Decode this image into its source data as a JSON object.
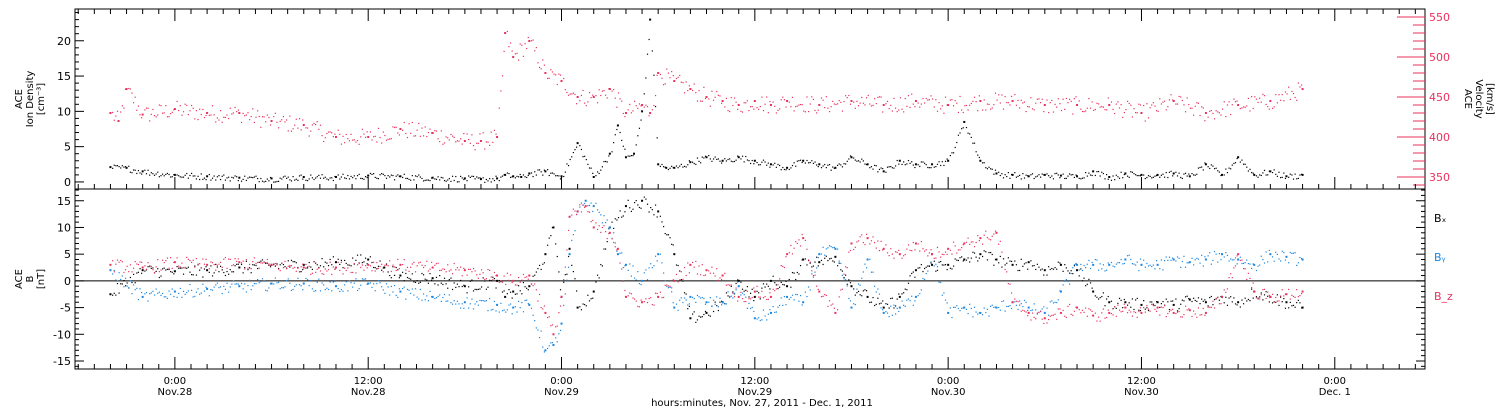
{
  "chart_data": [
    {
      "type": "scatter",
      "panel": "top",
      "ylabel_left": [
        "ACE",
        "Ion Density",
        "[cm⁻³]"
      ],
      "ylabel_right": [
        "ACE",
        "Velocity",
        "[km/s]"
      ],
      "ylim_left": [
        -1,
        24.5
      ],
      "ylim_right": [
        335,
        560
      ],
      "yticks_left": [
        0,
        5,
        10,
        15,
        20
      ],
      "yticks_right": [
        350,
        400,
        450,
        500,
        550
      ],
      "colors": {
        "density": "#000000",
        "velocity": "#e8325e"
      },
      "series": [
        {
          "name": "Ion Density",
          "axis": "left",
          "x": [
            -4.0,
            -3.0,
            -2.0,
            0,
            2,
            4,
            6,
            8,
            10,
            12,
            14,
            16,
            18,
            19,
            20,
            20.5,
            21,
            21.5,
            22,
            23,
            24,
            25,
            26,
            27,
            27.5,
            28,
            28.5,
            29,
            29.5,
            30,
            30.5,
            31,
            32,
            33,
            34,
            35,
            36,
            37,
            38,
            39,
            40,
            41,
            42,
            43,
            44,
            45,
            46,
            47,
            48,
            49,
            50,
            51,
            52,
            53,
            54,
            55,
            56,
            57,
            58,
            59,
            60,
            61,
            62,
            63,
            64,
            65,
            66,
            67,
            68,
            69,
            70
          ],
          "values": [
            2.1,
            2.0,
            1.5,
            1.0,
            0.8,
            0.6,
            0.5,
            0.7,
            0.7,
            0.9,
            0.8,
            0.6,
            0.5,
            0.4,
            0.5,
            1.0,
            0.8,
            0.7,
            1.2,
            1.5,
            0.8,
            5.5,
            0.7,
            4.0,
            8.0,
            3.5,
            4.0,
            10.0,
            23.0,
            2.5,
            2.0,
            2.0,
            2.8,
            3.5,
            3.0,
            3.5,
            3.0,
            2.5,
            2.0,
            3.0,
            2.5,
            2.0,
            3.5,
            2.5,
            1.5,
            3.0,
            2.5,
            2.5,
            3.0,
            8.5,
            3.0,
            1.2,
            1.0,
            0.8,
            1.0,
            0.9,
            0.8,
            1.5,
            0.7,
            1.2,
            1.0,
            1.0,
            1.2,
            0.8,
            2.5,
            1.0,
            3.5,
            1.0,
            1.5,
            0.8,
            1.0
          ]
        },
        {
          "name": "Velocity",
          "axis": "right",
          "x": [
            -4.0,
            -3.5,
            -3.0,
            -2.0,
            0,
            2,
            4,
            6,
            8,
            10,
            12,
            14,
            16,
            18,
            19,
            20,
            20.5,
            21,
            22,
            23,
            24,
            25,
            26,
            27,
            28,
            29,
            29.5,
            30,
            31,
            32,
            33,
            34,
            35,
            36,
            37,
            38,
            40,
            42,
            44,
            46,
            48,
            50,
            52,
            54,
            56,
            58,
            60,
            62,
            64,
            66,
            68,
            70
          ],
          "values": [
            430,
            420,
            460,
            428,
            435,
            430,
            430,
            420,
            415,
            400,
            400,
            410,
            405,
            395,
            395,
            400,
            530,
            500,
            520,
            480,
            470,
            450,
            450,
            460,
            430,
            440,
            430,
            480,
            470,
            460,
            450,
            445,
            440,
            445,
            440,
            445,
            440,
            445,
            440,
            445,
            440,
            445,
            445,
            440,
            440,
            440,
            430,
            445,
            430,
            440,
            445,
            460
          ]
        }
      ]
    },
    {
      "type": "scatter",
      "panel": "bottom",
      "ylabel": [
        "ACE",
        "B",
        "[nT]"
      ],
      "ylim": [
        -16.5,
        17.2
      ],
      "yticks": [
        -15,
        -10,
        -5,
        0,
        5,
        10,
        15
      ],
      "zero_line": true,
      "legend": [
        "Bₓ",
        "Bᵧ",
        "B_z"
      ],
      "legend_placement": "right",
      "colors": {
        "Bx": "#000000",
        "By": "#1a86e0",
        "Bz": "#e8325e"
      },
      "series": [
        {
          "name": "Bₓ",
          "color": "#000000",
          "x": [
            -4.0,
            -2,
            0,
            2,
            4,
            6,
            8,
            10,
            12,
            13,
            14,
            16,
            18,
            20,
            20.5,
            21,
            22,
            23,
            23.5,
            24,
            24.5,
            25,
            26,
            27,
            28,
            29,
            30,
            31,
            32,
            33,
            34,
            35,
            36,
            37,
            38,
            39,
            40,
            41,
            42,
            43,
            44,
            45,
            46,
            47,
            48,
            49,
            50,
            51,
            52,
            53,
            54,
            55,
            56,
            57,
            58,
            59,
            60,
            61,
            62,
            63,
            64,
            65,
            66,
            67,
            68,
            69,
            70
          ],
          "values": [
            -2.5,
            2.0,
            1.8,
            2.0,
            2.5,
            3.0,
            3.0,
            3.5,
            4.0,
            2.5,
            1.0,
            0.5,
            -1.0,
            0.0,
            -3.0,
            -2.0,
            -1.0,
            5.0,
            10.0,
            -3.0,
            6.0,
            -5.0,
            -2.0,
            10.0,
            14.0,
            15.0,
            13.0,
            5.0,
            -7.0,
            -6.0,
            -4.0,
            0.0,
            -3.0,
            0.0,
            -1.0,
            4.0,
            3.5,
            4.5,
            -1.0,
            -3.0,
            -5.0,
            -3.0,
            2.0,
            3.0,
            3.0,
            4.0,
            5.0,
            4.0,
            3.0,
            3.5,
            2.0,
            3.0,
            2.0,
            -2.0,
            -4.0,
            -4.0,
            -4.5,
            -4.0,
            -4.5,
            -3.5,
            -4.0,
            -3.0,
            -4.0,
            -2.0,
            -3.0,
            -4.0,
            -5.0
          ]
        },
        {
          "name": "Bᵧ",
          "color": "#1a86e0",
          "x": [
            -4.0,
            -2,
            0,
            2,
            4,
            6,
            8,
            10,
            12,
            14,
            16,
            18,
            20,
            21,
            22,
            23,
            23.5,
            24,
            24.5,
            25,
            25.5,
            26,
            27,
            27.5,
            28,
            29,
            30,
            31,
            32,
            33,
            34,
            35,
            36,
            37,
            38,
            39,
            40,
            41,
            42,
            43,
            44,
            45,
            46,
            47,
            48,
            49,
            50,
            51,
            52,
            53,
            54,
            55,
            56,
            57,
            58,
            59,
            60,
            61,
            62,
            63,
            64,
            65,
            66,
            67,
            68,
            69,
            70
          ],
          "values": [
            2.0,
            -3.0,
            -2.0,
            -1.5,
            -1.0,
            -0.5,
            -0.5,
            -1.0,
            -0.5,
            -2.0,
            -3.0,
            -4.0,
            -4.5,
            -5.0,
            -4.5,
            -13.0,
            -12.0,
            -8.0,
            5.0,
            13.0,
            15.0,
            14.0,
            10.0,
            5.0,
            3.0,
            0.0,
            5.0,
            -5.0,
            -3.0,
            -4.0,
            -4.0,
            -1.0,
            -7.0,
            -6.0,
            -3.0,
            -4.0,
            5.0,
            6.0,
            -5.0,
            4.0,
            -6.0,
            -5.0,
            -3.0,
            5.0,
            -6.0,
            -5.0,
            -6.0,
            -5.0,
            -4.0,
            -5.0,
            -6.0,
            -2.0,
            3.0,
            3.0,
            3.0,
            4.0,
            3.0,
            3.0,
            4.0,
            3.5,
            4.0,
            5.0,
            4.0,
            3.0,
            5.0,
            4.5,
            4.0
          ]
        },
        {
          "name": "B_z",
          "color": "#e8325e",
          "x": [
            -4.0,
            -2,
            0,
            2,
            4,
            6,
            8,
            10,
            12,
            14,
            16,
            18,
            20,
            21,
            22,
            23,
            23.5,
            24,
            24.5,
            25,
            25.5,
            26,
            27,
            27.5,
            28,
            29,
            30,
            31,
            32,
            33,
            34,
            35,
            36,
            37,
            38,
            39,
            40,
            41,
            42,
            43,
            44,
            45,
            46,
            47,
            48,
            49,
            50,
            51,
            52,
            53,
            54,
            55,
            56,
            57,
            58,
            59,
            60,
            61,
            62,
            63,
            64,
            65,
            66,
            67,
            68,
            69,
            70
          ],
          "values": [
            3.0,
            2.5,
            3.5,
            3.0,
            3.5,
            3.0,
            2.5,
            2.5,
            3.0,
            3.0,
            2.5,
            2.0,
            1.0,
            0.0,
            1.0,
            -6.0,
            -10.0,
            -3.0,
            12.0,
            13.0,
            14.0,
            10.0,
            9.0,
            6.0,
            -3.0,
            -4.0,
            -3.0,
            0.0,
            3.0,
            2.0,
            1.0,
            -3.0,
            -2.0,
            -3.0,
            5.0,
            8.0,
            -2.0,
            -6.0,
            7.0,
            8.0,
            6.0,
            5.0,
            7.0,
            5.0,
            6.0,
            7.0,
            8.0,
            9.0,
            -4.0,
            -6.0,
            -7.0,
            -6.0,
            -5.0,
            -6.5,
            -6.0,
            -5.0,
            -6.0,
            -5.0,
            -6.0,
            -5.5,
            -6.0,
            -3.0,
            5.0,
            -2.0,
            -3.0,
            -2.5,
            -2.0
          ]
        }
      ]
    }
  ],
  "x_axis": {
    "xlim_hours": [
      -6.2,
      77.6
    ],
    "ticks": [
      {
        "h": 0,
        "top": "0:00",
        "bottom": "Nov.28"
      },
      {
        "h": 12,
        "top": "12:00",
        "bottom": "Nov.28"
      },
      {
        "h": 24,
        "top": "0:00",
        "bottom": "Nov.29"
      },
      {
        "h": 36,
        "top": "12:00",
        "bottom": "Nov.29"
      },
      {
        "h": 48,
        "top": "0:00",
        "bottom": "Nov.30"
      },
      {
        "h": 60,
        "top": "12:00",
        "bottom": "Nov.30"
      },
      {
        "h": 72,
        "top": "0:00",
        "bottom": "Dec. 1"
      }
    ],
    "title": "hours:minutes, Nov. 27, 2011 - Dec. 1, 2011"
  }
}
